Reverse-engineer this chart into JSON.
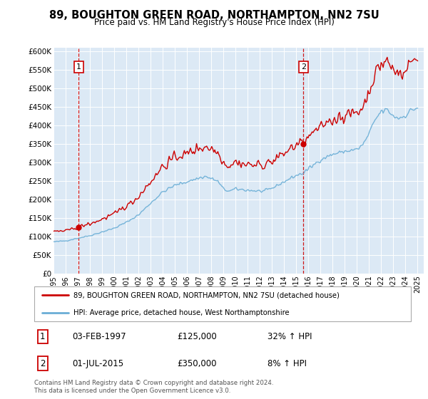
{
  "title": "89, BOUGHTON GREEN ROAD, NORTHAMPTON, NN2 7SU",
  "subtitle": "Price paid vs. HM Land Registry's House Price Index (HPI)",
  "legend_line1": "89, BOUGHTON GREEN ROAD, NORTHAMPTON, NN2 7SU (detached house)",
  "legend_line2": "HPI: Average price, detached house, West Northamptonshire",
  "annotation1_date": "03-FEB-1997",
  "annotation1_price": "£125,000",
  "annotation1_hpi": "32% ↑ HPI",
  "annotation2_date": "01-JUL-2015",
  "annotation2_price": "£350,000",
  "annotation2_hpi": "8% ↑ HPI",
  "footer": "Contains HM Land Registry data © Crown copyright and database right 2024.\nThis data is licensed under the Open Government Licence v3.0.",
  "hpi_color": "#6aaed6",
  "price_color": "#cc0000",
  "bg_color": "#dce9f5",
  "annotation_color": "#cc0000",
  "ylim_max": 600000,
  "ytick_step": 50000,
  "xlim_start": 1995.0,
  "xlim_end": 2025.5
}
